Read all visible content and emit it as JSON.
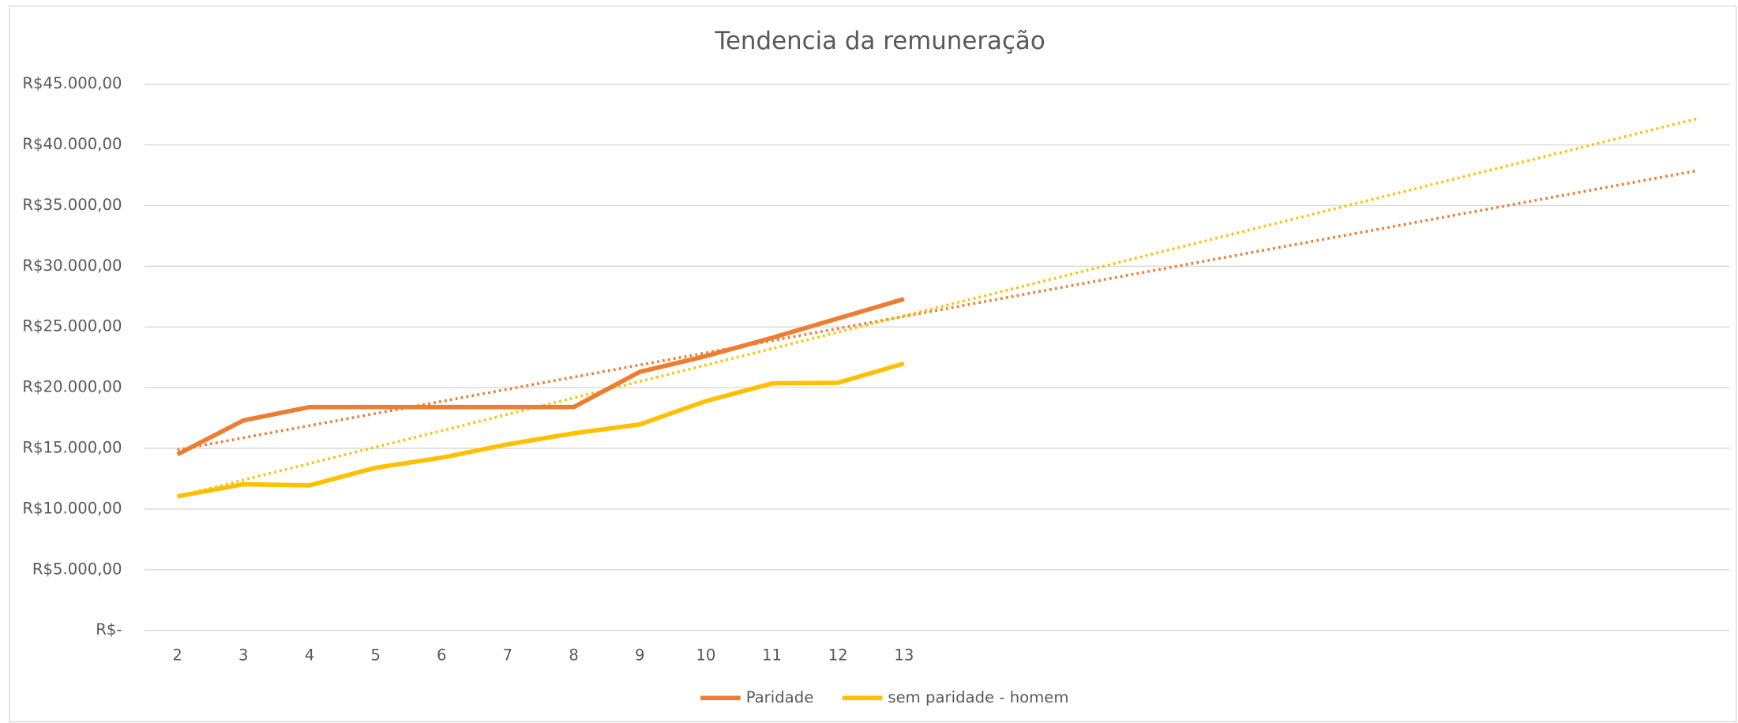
{
  "chart_data": {
    "type": "line",
    "title": "Tendencia da remuneração",
    "x": [
      2,
      3,
      4,
      5,
      6,
      7,
      8,
      9,
      10,
      11,
      12,
      13
    ],
    "xlim": [
      1.5,
      25.5
    ],
    "xticks": [
      2,
      3,
      4,
      5,
      6,
      7,
      8,
      9,
      10,
      11,
      12,
      13
    ],
    "ylim": [
      0,
      45000
    ],
    "yticks": [
      {
        "value": 0,
        "label": "R$-"
      },
      {
        "value": 5000,
        "label": "R$5.000,00"
      },
      {
        "value": 10000,
        "label": "R$10.000,00"
      },
      {
        "value": 15000,
        "label": "R$15.000,00"
      },
      {
        "value": 20000,
        "label": "R$20.000,00"
      },
      {
        "value": 25000,
        "label": "R$25.000,00"
      },
      {
        "value": 30000,
        "label": "R$30.000,00"
      },
      {
        "value": 35000,
        "label": "R$35.000,00"
      },
      {
        "value": 40000,
        "label": "R$40.000,00"
      },
      {
        "value": 45000,
        "label": "R$45.000,00"
      }
    ],
    "grid": true,
    "legend": "bottom",
    "series": [
      {
        "name": "Paridade",
        "color": "#ed7d31",
        "values": [
          14500,
          17300,
          18400,
          18400,
          18400,
          18400,
          18400,
          21300,
          22600,
          24100,
          25700,
          27300
        ]
      },
      {
        "name": "sem paridade - homem",
        "color": "#ffc000",
        "values": [
          11040,
          12040,
          11950,
          13400,
          14230,
          15330,
          16240,
          16970,
          18890,
          20350,
          20400,
          21990
        ]
      }
    ],
    "trendlines": [
      {
        "type": "linear",
        "style": "dotted",
        "color": "#ed7d31",
        "x": [
          2,
          25
        ],
        "values": [
          14870,
          37870
        ]
      },
      {
        "type": "linear",
        "style": "dotted",
        "color": "#ffc000",
        "x": [
          2,
          25
        ],
        "values": [
          11040,
          42150
        ]
      }
    ]
  }
}
